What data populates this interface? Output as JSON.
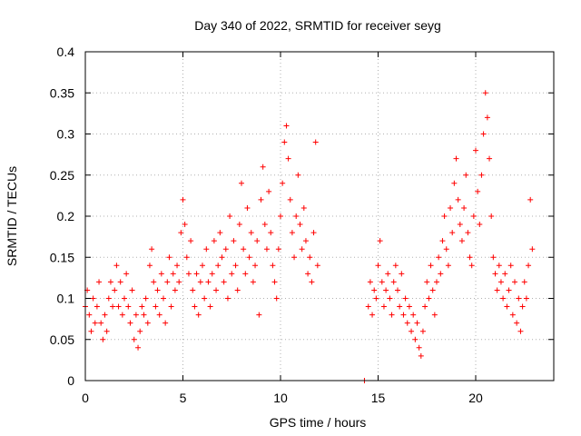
{
  "chart_data": {
    "type": "scatter",
    "title": "Day 340 of 2022, SRMTID for receiver seyg",
    "xlabel": "GPS time / hours",
    "ylabel": "SRMTID / TECUs",
    "xlim": [
      0,
      24
    ],
    "ylim": [
      0,
      0.4
    ],
    "grid": true,
    "marker": "+",
    "series_color": "#ff0000",
    "x_ticks": [
      0,
      5,
      10,
      15,
      20
    ],
    "x_tick_labels": [
      "0",
      "5",
      "10",
      "15",
      "20"
    ],
    "y_ticks": [
      0,
      0.05,
      0.1,
      0.15,
      0.2,
      0.25,
      0.3,
      0.35,
      0.4
    ],
    "y_tick_labels": [
      "0",
      "0.05",
      "0.1",
      "0.15",
      "0.2",
      "0.25",
      "0.3",
      "0.35",
      "0.4"
    ],
    "series": [
      {
        "name": "SRMTID",
        "points": [
          [
            0.0,
            0.09
          ],
          [
            0.1,
            0.11
          ],
          [
            0.2,
            0.08
          ],
          [
            0.3,
            0.06
          ],
          [
            0.4,
            0.1
          ],
          [
            0.5,
            0.07
          ],
          [
            0.6,
            0.09
          ],
          [
            0.7,
            0.12
          ],
          [
            0.8,
            0.07
          ],
          [
            0.9,
            0.05
          ],
          [
            1.0,
            0.08
          ],
          [
            1.1,
            0.06
          ],
          [
            1.2,
            0.1
          ],
          [
            1.3,
            0.12
          ],
          [
            1.4,
            0.09
          ],
          [
            1.5,
            0.11
          ],
          [
            1.6,
            0.14
          ],
          [
            1.7,
            0.09
          ],
          [
            1.8,
            0.12
          ],
          [
            1.9,
            0.08
          ],
          [
            2.0,
            0.1
          ],
          [
            2.1,
            0.13
          ],
          [
            2.2,
            0.09
          ],
          [
            2.3,
            0.07
          ],
          [
            2.4,
            0.11
          ],
          [
            2.5,
            0.05
          ],
          [
            2.6,
            0.08
          ],
          [
            2.7,
            0.04
          ],
          [
            2.8,
            0.06
          ],
          [
            2.9,
            0.09
          ],
          [
            3.0,
            0.08
          ],
          [
            3.1,
            0.1
          ],
          [
            3.2,
            0.07
          ],
          [
            3.3,
            0.14
          ],
          [
            3.4,
            0.16
          ],
          [
            3.5,
            0.12
          ],
          [
            3.6,
            0.09
          ],
          [
            3.7,
            0.11
          ],
          [
            3.8,
            0.08
          ],
          [
            3.9,
            0.13
          ],
          [
            4.0,
            0.1
          ],
          [
            4.1,
            0.07
          ],
          [
            4.2,
            0.12
          ],
          [
            4.3,
            0.15
          ],
          [
            4.4,
            0.09
          ],
          [
            4.5,
            0.13
          ],
          [
            4.6,
            0.11
          ],
          [
            4.7,
            0.14
          ],
          [
            4.8,
            0.12
          ],
          [
            4.9,
            0.18
          ],
          [
            5.0,
            0.22
          ],
          [
            5.1,
            0.19
          ],
          [
            5.2,
            0.15
          ],
          [
            5.3,
            0.13
          ],
          [
            5.4,
            0.17
          ],
          [
            5.5,
            0.11
          ],
          [
            5.6,
            0.09
          ],
          [
            5.7,
            0.13
          ],
          [
            5.8,
            0.08
          ],
          [
            5.9,
            0.12
          ],
          [
            6.0,
            0.14
          ],
          [
            6.1,
            0.1
          ],
          [
            6.2,
            0.16
          ],
          [
            6.3,
            0.12
          ],
          [
            6.4,
            0.09
          ],
          [
            6.5,
            0.13
          ],
          [
            6.6,
            0.17
          ],
          [
            6.7,
            0.11
          ],
          [
            6.8,
            0.14
          ],
          [
            6.9,
            0.18
          ],
          [
            7.0,
            0.15
          ],
          [
            7.1,
            0.12
          ],
          [
            7.2,
            0.16
          ],
          [
            7.3,
            0.1
          ],
          [
            7.4,
            0.2
          ],
          [
            7.5,
            0.13
          ],
          [
            7.6,
            0.17
          ],
          [
            7.7,
            0.14
          ],
          [
            7.8,
            0.11
          ],
          [
            7.9,
            0.19
          ],
          [
            8.0,
            0.24
          ],
          [
            8.1,
            0.16
          ],
          [
            8.2,
            0.13
          ],
          [
            8.3,
            0.21
          ],
          [
            8.4,
            0.15
          ],
          [
            8.5,
            0.18
          ],
          [
            8.6,
            0.12
          ],
          [
            8.7,
            0.14
          ],
          [
            8.8,
            0.17
          ],
          [
            8.9,
            0.08
          ],
          [
            9.0,
            0.22
          ],
          [
            9.1,
            0.26
          ],
          [
            9.2,
            0.19
          ],
          [
            9.3,
            0.16
          ],
          [
            9.4,
            0.23
          ],
          [
            9.5,
            0.18
          ],
          [
            9.6,
            0.14
          ],
          [
            9.7,
            0.12
          ],
          [
            9.8,
            0.1
          ],
          [
            9.9,
            0.16
          ],
          [
            10.0,
            0.2
          ],
          [
            10.1,
            0.24
          ],
          [
            10.2,
            0.29
          ],
          [
            10.3,
            0.31
          ],
          [
            10.4,
            0.27
          ],
          [
            10.5,
            0.22
          ],
          [
            10.6,
            0.18
          ],
          [
            10.7,
            0.15
          ],
          [
            10.8,
            0.2
          ],
          [
            10.9,
            0.25
          ],
          [
            11.0,
            0.19
          ],
          [
            11.1,
            0.16
          ],
          [
            11.2,
            0.21
          ],
          [
            11.3,
            0.17
          ],
          [
            11.4,
            0.13
          ],
          [
            11.5,
            0.15
          ],
          [
            11.6,
            0.12
          ],
          [
            11.7,
            0.18
          ],
          [
            11.8,
            0.29
          ],
          [
            11.9,
            0.14
          ],
          [
            14.3,
            0.0
          ],
          [
            14.5,
            0.09
          ],
          [
            14.6,
            0.12
          ],
          [
            14.7,
            0.08
          ],
          [
            14.8,
            0.11
          ],
          [
            14.9,
            0.1
          ],
          [
            15.0,
            0.14
          ],
          [
            15.1,
            0.17
          ],
          [
            15.2,
            0.12
          ],
          [
            15.3,
            0.09
          ],
          [
            15.4,
            0.11
          ],
          [
            15.5,
            0.13
          ],
          [
            15.6,
            0.1
          ],
          [
            15.7,
            0.08
          ],
          [
            15.8,
            0.12
          ],
          [
            15.9,
            0.14
          ],
          [
            16.0,
            0.11
          ],
          [
            16.1,
            0.09
          ],
          [
            16.2,
            0.13
          ],
          [
            16.3,
            0.08
          ],
          [
            16.4,
            0.1
          ],
          [
            16.5,
            0.07
          ],
          [
            16.6,
            0.09
          ],
          [
            16.7,
            0.06
          ],
          [
            16.8,
            0.08
          ],
          [
            16.9,
            0.05
          ],
          [
            17.0,
            0.07
          ],
          [
            17.1,
            0.04
          ],
          [
            17.2,
            0.03
          ],
          [
            17.3,
            0.06
          ],
          [
            17.4,
            0.09
          ],
          [
            17.5,
            0.12
          ],
          [
            17.6,
            0.1
          ],
          [
            17.7,
            0.14
          ],
          [
            17.8,
            0.11
          ],
          [
            17.9,
            0.08
          ],
          [
            18.0,
            0.12
          ],
          [
            18.1,
            0.15
          ],
          [
            18.2,
            0.13
          ],
          [
            18.3,
            0.17
          ],
          [
            18.4,
            0.2
          ],
          [
            18.5,
            0.16
          ],
          [
            18.6,
            0.14
          ],
          [
            18.7,
            0.21
          ],
          [
            18.8,
            0.18
          ],
          [
            18.9,
            0.24
          ],
          [
            19.0,
            0.27
          ],
          [
            19.1,
            0.22
          ],
          [
            19.2,
            0.19
          ],
          [
            19.3,
            0.17
          ],
          [
            19.4,
            0.21
          ],
          [
            19.5,
            0.25
          ],
          [
            19.6,
            0.18
          ],
          [
            19.7,
            0.15
          ],
          [
            19.8,
            0.14
          ],
          [
            19.9,
            0.2
          ],
          [
            20.0,
            0.28
          ],
          [
            20.1,
            0.23
          ],
          [
            20.2,
            0.19
          ],
          [
            20.3,
            0.25
          ],
          [
            20.4,
            0.3
          ],
          [
            20.5,
            0.35
          ],
          [
            20.6,
            0.32
          ],
          [
            20.7,
            0.27
          ],
          [
            20.8,
            0.2
          ],
          [
            20.9,
            0.15
          ],
          [
            21.0,
            0.13
          ],
          [
            21.1,
            0.11
          ],
          [
            21.2,
            0.14
          ],
          [
            21.3,
            0.12
          ],
          [
            21.4,
            0.1
          ],
          [
            21.5,
            0.13
          ],
          [
            21.6,
            0.09
          ],
          [
            21.7,
            0.11
          ],
          [
            21.8,
            0.14
          ],
          [
            21.9,
            0.08
          ],
          [
            22.0,
            0.12
          ],
          [
            22.1,
            0.07
          ],
          [
            22.2,
            0.1
          ],
          [
            22.3,
            0.06
          ],
          [
            22.4,
            0.09
          ],
          [
            22.5,
            0.12
          ],
          [
            22.6,
            0.1
          ],
          [
            22.7,
            0.14
          ],
          [
            22.8,
            0.22
          ],
          [
            22.9,
            0.16
          ]
        ]
      }
    ]
  }
}
